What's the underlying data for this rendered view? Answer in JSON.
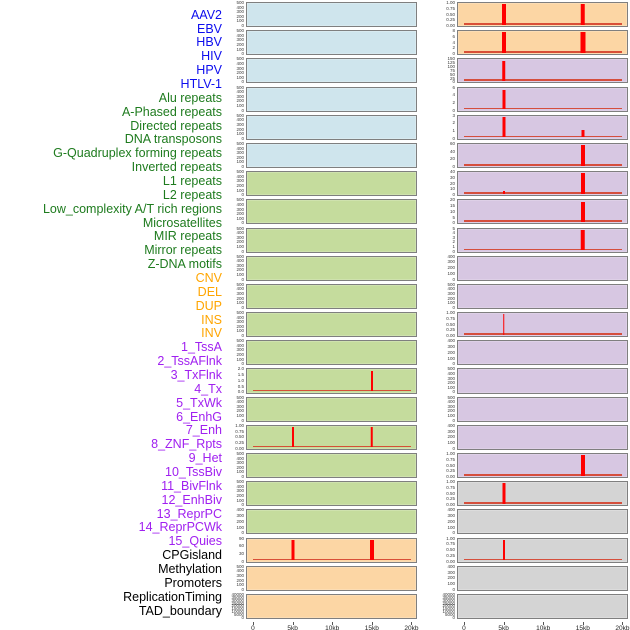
{
  "colors": {
    "label_virus": "#0d0dee",
    "label_repeat": "#1e7b1e",
    "label_sv": "#ffa500",
    "label_state": "#a020f0",
    "label_other": "#000000",
    "panel_virus": "#cfe5ed",
    "panel_repeat": "#c5dc9d",
    "panel_sv": "#fcd6a4",
    "panel_state": "#d7c7e2",
    "panel_other": "#d4d4d4",
    "panel_border": "#7f7f7f",
    "peak_red": "#ff0000",
    "baseline_red": "#d5402b"
  },
  "chart_data": {
    "type": "area",
    "title": "",
    "layout": "44 feature-density tracks in two columns of 22 panels, shared x-axis per column",
    "x_axis": {
      "ticks": [
        "0",
        "5kb",
        "10kb",
        "15kb",
        "20kb"
      ],
      "range_kb": [
        0,
        20
      ]
    },
    "tracks": [
      {
        "name": "AAV2",
        "group": "virus",
        "col": "L",
        "yticks": [
          "500",
          "400",
          "300",
          "200",
          "100",
          "0"
        ],
        "peaks": [],
        "base": false
      },
      {
        "name": "EBV",
        "group": "virus",
        "col": "L",
        "yticks": [
          "500",
          "400",
          "300",
          "200",
          "100",
          "0"
        ],
        "peaks": [],
        "base": false
      },
      {
        "name": "HBV",
        "group": "virus",
        "col": "L",
        "yticks": [
          "500",
          "400",
          "300",
          "200",
          "100",
          "0"
        ],
        "peaks": [],
        "base": false
      },
      {
        "name": "HIV",
        "group": "virus",
        "col": "L",
        "yticks": [
          "500",
          "400",
          "300",
          "200",
          "100",
          "0"
        ],
        "peaks": [],
        "base": false
      },
      {
        "name": "HPV",
        "group": "virus",
        "col": "L",
        "yticks": [
          "500",
          "400",
          "300",
          "200",
          "100",
          "0"
        ],
        "peaks": [],
        "base": false
      },
      {
        "name": "HTLV-1",
        "group": "virus",
        "col": "L",
        "yticks": [
          "500",
          "400",
          "300",
          "200",
          "100",
          "0"
        ],
        "peaks": [],
        "base": false
      },
      {
        "name": "Alu repeats",
        "group": "repeat",
        "col": "L",
        "yticks": [
          "500",
          "400",
          "300",
          "200",
          "100",
          "0"
        ],
        "peaks": [],
        "base": false
      },
      {
        "name": "A-Phased repeats",
        "group": "repeat",
        "col": "L",
        "yticks": [
          "500",
          "400",
          "300",
          "200",
          "100",
          "0"
        ],
        "peaks": [],
        "base": false
      },
      {
        "name": "Directed repeats",
        "group": "repeat",
        "col": "L",
        "yticks": [
          "500",
          "400",
          "300",
          "200",
          "100",
          "0"
        ],
        "peaks": [],
        "base": false
      },
      {
        "name": "DNA transposons",
        "group": "repeat",
        "col": "L",
        "yticks": [
          "500",
          "400",
          "300",
          "200",
          "100",
          "0"
        ],
        "peaks": [],
        "base": false
      },
      {
        "name": "G-Quadruplex forming repeats",
        "group": "repeat",
        "col": "L",
        "yticks": [
          "500",
          "400",
          "300",
          "200",
          "100",
          "0"
        ],
        "peaks": [],
        "base": false
      },
      {
        "name": "Inverted repeats",
        "group": "repeat",
        "col": "L",
        "yticks": [
          "500",
          "400",
          "300",
          "200",
          "100",
          "0"
        ],
        "peaks": [],
        "base": false
      },
      {
        "name": "L1 repeats",
        "group": "repeat",
        "col": "L",
        "yticks": [
          "500",
          "400",
          "300",
          "200",
          "100",
          "0"
        ],
        "peaks": [],
        "base": false
      },
      {
        "name": "L2 repeats",
        "group": "repeat",
        "col": "L",
        "yticks": [
          "2.0",
          "1.5",
          "1.0",
          "0.5",
          "0.0"
        ],
        "peaks": [
          {
            "kb": 15,
            "h": 1,
            "w": 2
          }
        ],
        "base": true
      },
      {
        "name": "Low_complexity A/T rich regions",
        "group": "repeat",
        "col": "L",
        "yticks": [
          "500",
          "400",
          "300",
          "200",
          "100",
          "0"
        ],
        "peaks": [],
        "base": false
      },
      {
        "name": "Microsatellites",
        "group": "repeat",
        "col": "L",
        "yticks": [
          "1.00",
          "0.75",
          "0.50",
          "0.25",
          "0.00"
        ],
        "peaks": [
          {
            "kb": 5,
            "h": 1,
            "w": 2
          },
          {
            "kb": 15,
            "h": 1,
            "w": 2.5
          }
        ],
        "base": true
      },
      {
        "name": "MIR repeats",
        "group": "repeat",
        "col": "L",
        "yticks": [
          "500",
          "400",
          "300",
          "200",
          "100",
          "0"
        ],
        "peaks": [],
        "base": false
      },
      {
        "name": "Mirror repeats",
        "group": "repeat",
        "col": "L",
        "yticks": [
          "500",
          "400",
          "300",
          "200",
          "100",
          "0"
        ],
        "peaks": [],
        "base": false
      },
      {
        "name": "Z-DNA motifs",
        "group": "repeat",
        "col": "L",
        "yticks": [
          "400",
          "300",
          "200",
          "100",
          "0"
        ],
        "peaks": [],
        "base": false
      },
      {
        "name": "CNV",
        "group": "sv",
        "col": "L",
        "yticks": [
          "90",
          "60",
          "30",
          "0"
        ],
        "peaks": [
          {
            "kb": 5,
            "h": 1,
            "w": 3
          },
          {
            "kb": 15,
            "h": 1,
            "w": 4
          }
        ],
        "base": true
      },
      {
        "name": "DEL",
        "group": "sv",
        "col": "L",
        "yticks": [
          "500",
          "400",
          "300",
          "200",
          "100",
          "0"
        ],
        "peaks": [],
        "base": false
      },
      {
        "name": "DUP",
        "group": "sv",
        "col": "L",
        "yticks": [
          "40000",
          "35000",
          "30000",
          "25000",
          "20000",
          "15000",
          "10000",
          "5000",
          "0"
        ],
        "peaks": [],
        "base": false
      },
      {
        "name": "INS",
        "group": "sv",
        "col": "R",
        "yticks": [
          "1.00",
          "0.75",
          "0.50",
          "0.25",
          "0.00"
        ],
        "peaks": [
          {
            "kb": 5,
            "h": 1,
            "w": 4
          },
          {
            "kb": 15,
            "h": 1,
            "w": 4.5
          }
        ],
        "base": true
      },
      {
        "name": "INV",
        "group": "sv",
        "col": "R",
        "yticks": [
          "8",
          "6",
          "4",
          "2",
          "0"
        ],
        "peaks": [
          {
            "kb": 5,
            "h": 1,
            "w": 4
          },
          {
            "kb": 15,
            "h": 1,
            "w": 5
          }
        ],
        "base": true
      },
      {
        "name": "1_TssA",
        "group": "state",
        "col": "R",
        "yticks": [
          "150",
          "125",
          "100",
          "75",
          "50",
          "25",
          "0"
        ],
        "peaks": [
          {
            "kb": 5,
            "h": 1,
            "w": 3.5
          }
        ],
        "base": true
      },
      {
        "name": "2_TssAFlnk",
        "group": "state",
        "col": "R",
        "yticks": [
          "6",
          "4",
          "2",
          "0"
        ],
        "peaks": [
          {
            "kb": 5,
            "h": 0.92,
            "w": 3
          }
        ],
        "base": true
      },
      {
        "name": "3_TxFlnk",
        "group": "state",
        "col": "R",
        "yticks": [
          "3",
          "2",
          "1",
          "0"
        ],
        "peaks": [
          {
            "kb": 5,
            "h": 1,
            "w": 3
          },
          {
            "kb": 15,
            "h": 0.35,
            "w": 3
          }
        ],
        "base": true
      },
      {
        "name": "4_Tx",
        "group": "state",
        "col": "R",
        "yticks": [
          "60",
          "40",
          "20",
          "0"
        ],
        "peaks": [
          {
            "kb": 15,
            "h": 1,
            "w": 4
          }
        ],
        "base": true
      },
      {
        "name": "5_TxWk",
        "group": "state",
        "col": "R",
        "yticks": [
          "40",
          "30",
          "20",
          "10",
          "0"
        ],
        "peaks": [
          {
            "kb": 5,
            "h": 0.12,
            "w": 2
          },
          {
            "kb": 15,
            "h": 1,
            "w": 4
          }
        ],
        "base": true
      },
      {
        "name": "6_EnhG",
        "group": "state",
        "col": "R",
        "yticks": [
          "20",
          "15",
          "10",
          "5",
          "0"
        ],
        "peaks": [
          {
            "kb": 15,
            "h": 1,
            "w": 4
          }
        ],
        "base": true
      },
      {
        "name": "7_Enh",
        "group": "state",
        "col": "R",
        "yticks": [
          "5",
          "4",
          "3",
          "2",
          "1",
          "0"
        ],
        "peaks": [
          {
            "kb": 15,
            "h": 1,
            "w": 4.5
          }
        ],
        "base": true
      },
      {
        "name": "8_ZNF_Rpts",
        "group": "state",
        "col": "R",
        "yticks": [
          "400",
          "300",
          "200",
          "100",
          "0"
        ],
        "peaks": [],
        "base": false
      },
      {
        "name": "9_Het",
        "group": "state",
        "col": "R",
        "yticks": [
          "500",
          "400",
          "300",
          "200",
          "100",
          "0"
        ],
        "peaks": [],
        "base": false
      },
      {
        "name": "10_TssBiv",
        "group": "state",
        "col": "R",
        "yticks": [
          "1.00",
          "0.75",
          "0.50",
          "0.25",
          "0.00"
        ],
        "peaks": [
          {
            "kb": 5,
            "h": 1,
            "w": 1.5
          }
        ],
        "base": true
      },
      {
        "name": "11_BivFlnk",
        "group": "state",
        "col": "R",
        "yticks": [
          "400",
          "300",
          "200",
          "100",
          "0"
        ],
        "peaks": [],
        "base": false
      },
      {
        "name": "12_EnhBiv",
        "group": "state",
        "col": "R",
        "yticks": [
          "500",
          "400",
          "300",
          "200",
          "100",
          "0"
        ],
        "peaks": [],
        "base": false
      },
      {
        "name": "13_ReprPC",
        "group": "state",
        "col": "R",
        "yticks": [
          "500",
          "400",
          "300",
          "200",
          "100",
          "0"
        ],
        "peaks": [],
        "base": false
      },
      {
        "name": "14_ReprPCWk",
        "group": "state",
        "col": "R",
        "yticks": [
          "400",
          "300",
          "200",
          "100",
          "0"
        ],
        "peaks": [],
        "base": false
      },
      {
        "name": "15_Quies",
        "group": "state",
        "col": "R",
        "yticks": [
          "1.00",
          "0.75",
          "0.50",
          "0.25",
          "0.00"
        ],
        "peaks": [
          {
            "kb": 15,
            "h": 1,
            "w": 4
          }
        ],
        "base": true
      },
      {
        "name": "CPGisland",
        "group": "other",
        "col": "R",
        "yticks": [
          "1.00",
          "0.75",
          "0.50",
          "0.25",
          "0.00"
        ],
        "peaks": [
          {
            "kb": 5,
            "h": 1,
            "w": 3
          }
        ],
        "base": true
      },
      {
        "name": "Methylation",
        "group": "other",
        "col": "R",
        "yticks": [
          "400",
          "300",
          "200",
          "100",
          "0"
        ],
        "peaks": [],
        "base": false
      },
      {
        "name": "Promoters",
        "group": "other",
        "col": "R",
        "yticks": [
          "1.00",
          "0.75",
          "0.50",
          "0.25",
          "0.00"
        ],
        "peaks": [
          {
            "kb": 5,
            "h": 1,
            "w": 2
          }
        ],
        "base": true
      },
      {
        "name": "ReplicationTiming",
        "group": "other",
        "col": "R",
        "yticks": [
          "400",
          "300",
          "200",
          "100",
          "0"
        ],
        "peaks": [],
        "base": false
      },
      {
        "name": "TAD_boundary",
        "group": "other",
        "col": "R",
        "yticks": [
          "40000",
          "35000",
          "30000",
          "25000",
          "20000",
          "15000",
          "10000",
          "5000",
          "0"
        ],
        "peaks": [],
        "base": false
      }
    ]
  }
}
